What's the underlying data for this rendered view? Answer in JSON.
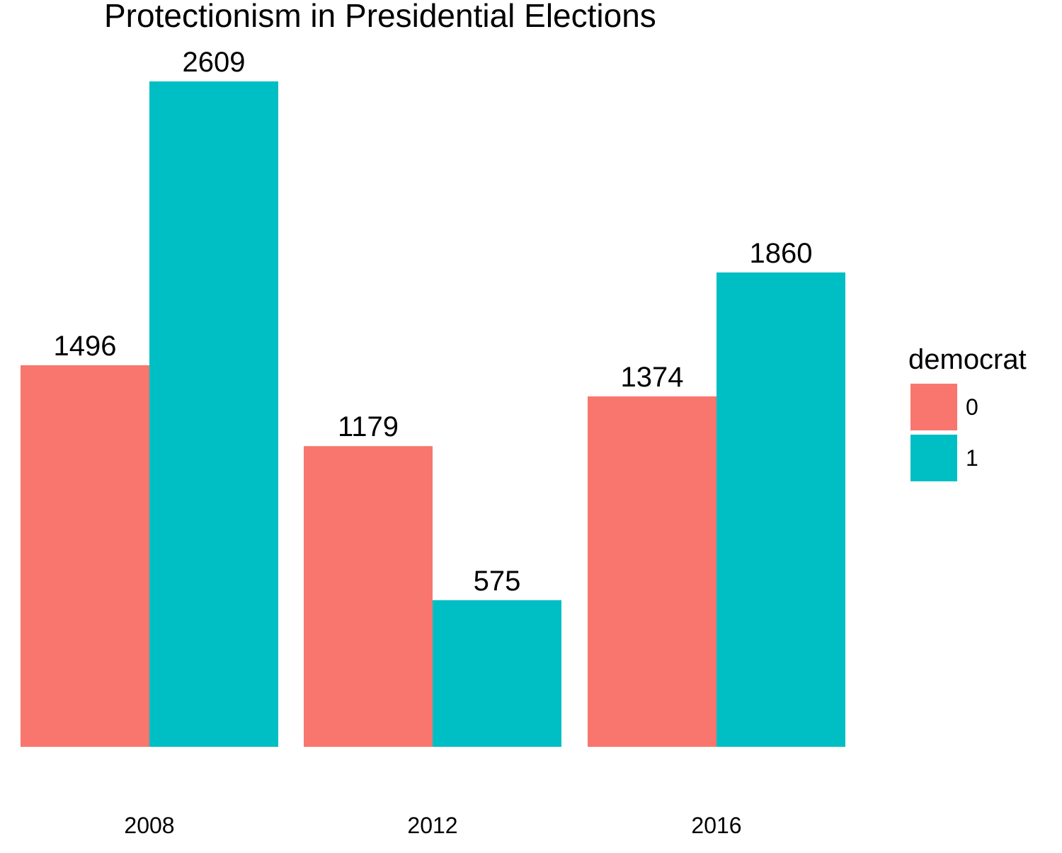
{
  "chart_data": {
    "type": "bar",
    "title": "Protectionism in Presidential Elections",
    "xlabel": "",
    "ylabel": "",
    "categories": [
      "2008",
      "2012",
      "2016"
    ],
    "series": [
      {
        "name": "0",
        "color": "#F8766D",
        "values": [
          1496,
          1179,
          1374
        ]
      },
      {
        "name": "1",
        "color": "#00BFC4",
        "values": [
          2609,
          575,
          1860
        ]
      }
    ],
    "ylim": [
      0,
      2609
    ],
    "grid": false,
    "legend": {
      "title": "democrat",
      "placement": "right",
      "entries": [
        "0",
        "1"
      ]
    }
  }
}
